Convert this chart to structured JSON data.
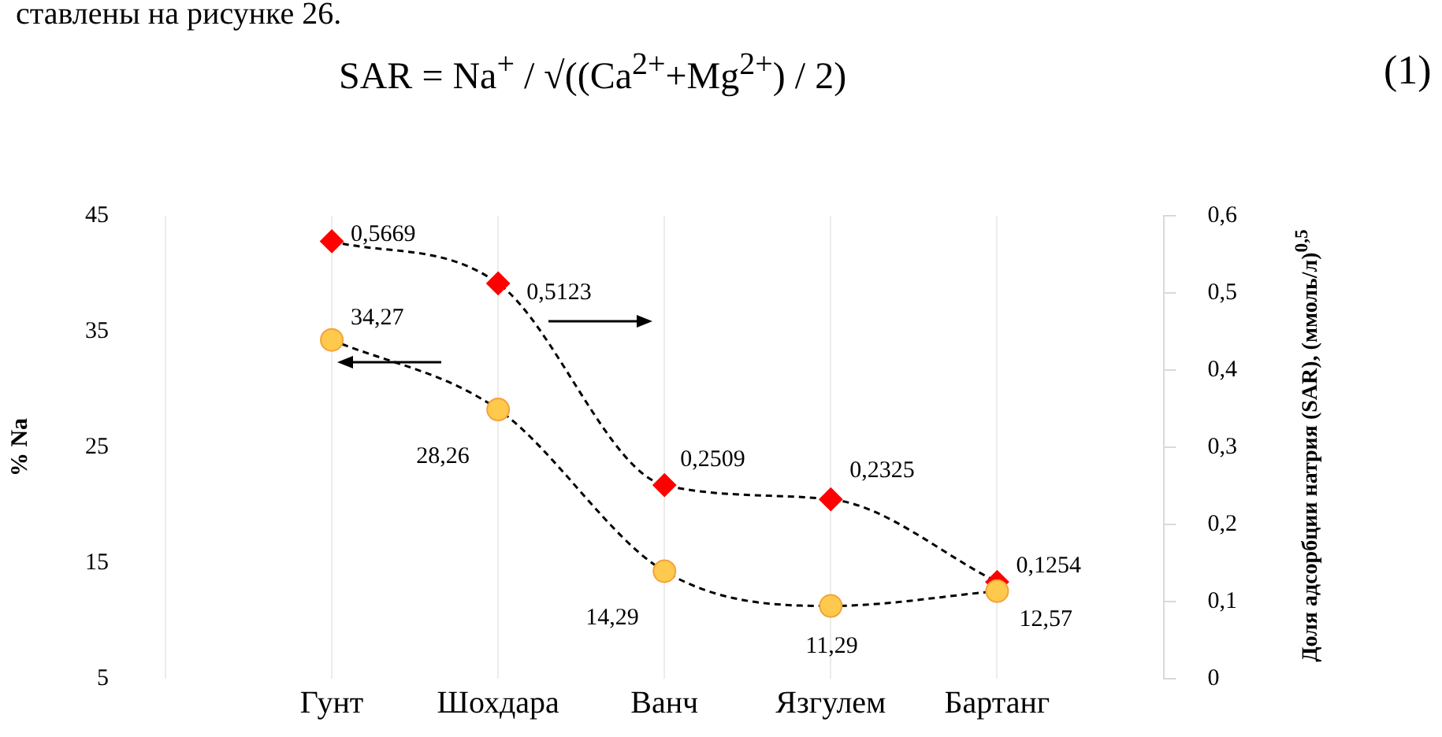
{
  "chart_data": {
    "type": "line",
    "annotations": [
      "ставлены на рисунке 26.",
      "SAR = Na$^{+}$ / √((Ca$^{2+}$+Mg$^{2+}$) / 2)",
      "(1)"
    ],
    "ylabel": "% Na",
    "y2label": "Доля адсорбции натрия (SAR), (ммоль/л)$^{0,5}$",
    "categories": [
      null,
      "Гунт",
      "Шохдара",
      "Ванч",
      "Язгулем",
      "Бартанг",
      null
    ],
    "series": [
      {
        "color": "#ffc94d",
        "marker": "circle",
        "line_style": "dashed",
        "values": [
          null,
          34.27,
          28.26,
          14.29,
          11.29,
          12.57,
          null
        ],
        "value_labels": [
          null,
          "34,27",
          "28,26",
          "14,29",
          "11,29",
          "12,57",
          null
        ]
      },
      {
        "color": "#ff0000",
        "marker": "diamond",
        "line_style": "dashed",
        "axis": "y2",
        "values": [
          null,
          0.5669,
          0.5123,
          0.2509,
          0.2325,
          0.1254,
          null
        ],
        "value_labels": [
          null,
          "0,5669",
          "0,5123",
          "0,2509",
          "0,2325",
          "0,1254",
          null
        ]
      }
    ],
    "ylim": [
      5,
      45
    ],
    "yticks": [
      5,
      15,
      25,
      35,
      45
    ],
    "y2lim": [
      0,
      0.6
    ],
    "y2ticks": [
      0,
      {
        "value": 0.1,
        "label": "0,1"
      },
      {
        "value": 0.2,
        "label": "0,2"
      },
      {
        "value": 0.3,
        "label": "0,3"
      },
      {
        "value": 0.4,
        "label": "0,4"
      },
      {
        "value": 0.5,
        "label": "0,5"
      },
      {
        "value": 0.6,
        "label": "0,6"
      }
    ],
    "grid": "x",
    "legend": false
  }
}
